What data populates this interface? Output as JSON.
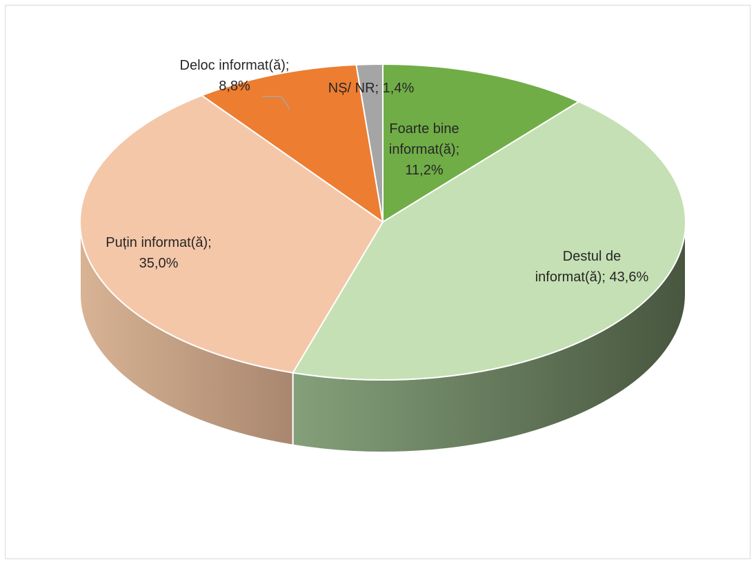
{
  "chart_data": {
    "type": "pie",
    "style": "3d",
    "title": "",
    "slices": [
      {
        "label_lines": [
          "Foarte bine",
          "informat(ă);",
          "11,2%"
        ],
        "value": 11.2,
        "color": "#70ad47"
      },
      {
        "label_lines": [
          "Destul de",
          "informat(ă); 43,6%"
        ],
        "value": 43.6,
        "color": "#c5e0b4"
      },
      {
        "label_lines": [
          "Puțin informat(ă);",
          "35,0%"
        ],
        "value": 35.0,
        "color": "#f4c7a9"
      },
      {
        "label_lines": [
          "Deloc informat(ă);",
          "8,8%"
        ],
        "value": 8.8,
        "color": "#ed7d31"
      },
      {
        "label_lines": [
          "NȘ/ NR; 1,4%"
        ],
        "value": 1.4,
        "color": "#a5a5a5"
      }
    ]
  }
}
